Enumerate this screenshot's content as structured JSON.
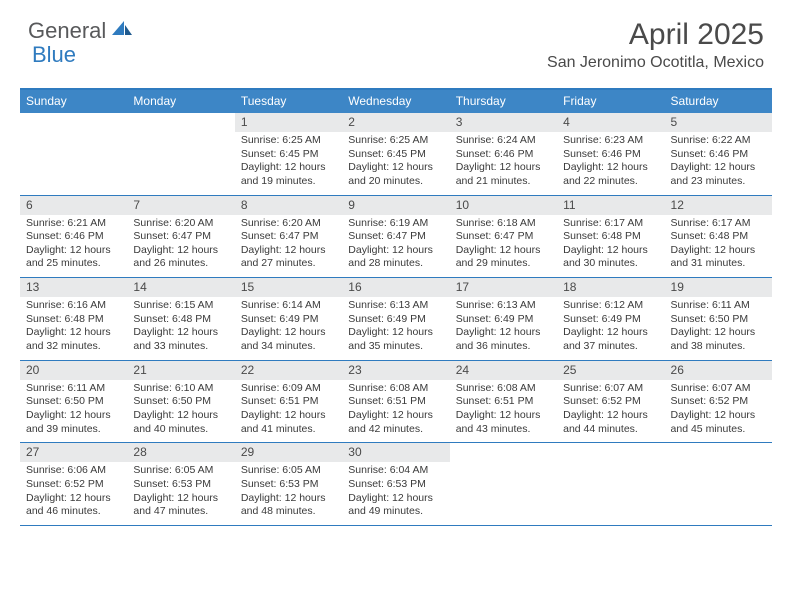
{
  "brand": {
    "name1": "General",
    "name2": "Blue",
    "name1_color": "#58595b",
    "name2_color": "#2f7bbf"
  },
  "header": {
    "title": "April 2025",
    "location": "San Jeronimo Ocotitla, Mexico"
  },
  "colors": {
    "header_bg": "#3d86c6",
    "border": "#2f7bbf",
    "daynum_bg": "#e8e9ea",
    "text": "#4a4a4a",
    "info_text": "#3a3a3a",
    "weekday_text": "#ffffff",
    "background": "#ffffff"
  },
  "weekdays": [
    "Sunday",
    "Monday",
    "Tuesday",
    "Wednesday",
    "Thursday",
    "Friday",
    "Saturday"
  ],
  "weeks": [
    [
      null,
      null,
      {
        "n": "1",
        "sunrise": "6:25 AM",
        "sunset": "6:45 PM",
        "daylight": "12 hours and 19 minutes."
      },
      {
        "n": "2",
        "sunrise": "6:25 AM",
        "sunset": "6:45 PM",
        "daylight": "12 hours and 20 minutes."
      },
      {
        "n": "3",
        "sunrise": "6:24 AM",
        "sunset": "6:46 PM",
        "daylight": "12 hours and 21 minutes."
      },
      {
        "n": "4",
        "sunrise": "6:23 AM",
        "sunset": "6:46 PM",
        "daylight": "12 hours and 22 minutes."
      },
      {
        "n": "5",
        "sunrise": "6:22 AM",
        "sunset": "6:46 PM",
        "daylight": "12 hours and 23 minutes."
      }
    ],
    [
      {
        "n": "6",
        "sunrise": "6:21 AM",
        "sunset": "6:46 PM",
        "daylight": "12 hours and 25 minutes."
      },
      {
        "n": "7",
        "sunrise": "6:20 AM",
        "sunset": "6:47 PM",
        "daylight": "12 hours and 26 minutes."
      },
      {
        "n": "8",
        "sunrise": "6:20 AM",
        "sunset": "6:47 PM",
        "daylight": "12 hours and 27 minutes."
      },
      {
        "n": "9",
        "sunrise": "6:19 AM",
        "sunset": "6:47 PM",
        "daylight": "12 hours and 28 minutes."
      },
      {
        "n": "10",
        "sunrise": "6:18 AM",
        "sunset": "6:47 PM",
        "daylight": "12 hours and 29 minutes."
      },
      {
        "n": "11",
        "sunrise": "6:17 AM",
        "sunset": "6:48 PM",
        "daylight": "12 hours and 30 minutes."
      },
      {
        "n": "12",
        "sunrise": "6:17 AM",
        "sunset": "6:48 PM",
        "daylight": "12 hours and 31 minutes."
      }
    ],
    [
      {
        "n": "13",
        "sunrise": "6:16 AM",
        "sunset": "6:48 PM",
        "daylight": "12 hours and 32 minutes."
      },
      {
        "n": "14",
        "sunrise": "6:15 AM",
        "sunset": "6:48 PM",
        "daylight": "12 hours and 33 minutes."
      },
      {
        "n": "15",
        "sunrise": "6:14 AM",
        "sunset": "6:49 PM",
        "daylight": "12 hours and 34 minutes."
      },
      {
        "n": "16",
        "sunrise": "6:13 AM",
        "sunset": "6:49 PM",
        "daylight": "12 hours and 35 minutes."
      },
      {
        "n": "17",
        "sunrise": "6:13 AM",
        "sunset": "6:49 PM",
        "daylight": "12 hours and 36 minutes."
      },
      {
        "n": "18",
        "sunrise": "6:12 AM",
        "sunset": "6:49 PM",
        "daylight": "12 hours and 37 minutes."
      },
      {
        "n": "19",
        "sunrise": "6:11 AM",
        "sunset": "6:50 PM",
        "daylight": "12 hours and 38 minutes."
      }
    ],
    [
      {
        "n": "20",
        "sunrise": "6:11 AM",
        "sunset": "6:50 PM",
        "daylight": "12 hours and 39 minutes."
      },
      {
        "n": "21",
        "sunrise": "6:10 AM",
        "sunset": "6:50 PM",
        "daylight": "12 hours and 40 minutes."
      },
      {
        "n": "22",
        "sunrise": "6:09 AM",
        "sunset": "6:51 PM",
        "daylight": "12 hours and 41 minutes."
      },
      {
        "n": "23",
        "sunrise": "6:08 AM",
        "sunset": "6:51 PM",
        "daylight": "12 hours and 42 minutes."
      },
      {
        "n": "24",
        "sunrise": "6:08 AM",
        "sunset": "6:51 PM",
        "daylight": "12 hours and 43 minutes."
      },
      {
        "n": "25",
        "sunrise": "6:07 AM",
        "sunset": "6:52 PM",
        "daylight": "12 hours and 44 minutes."
      },
      {
        "n": "26",
        "sunrise": "6:07 AM",
        "sunset": "6:52 PM",
        "daylight": "12 hours and 45 minutes."
      }
    ],
    [
      {
        "n": "27",
        "sunrise": "6:06 AM",
        "sunset": "6:52 PM",
        "daylight": "12 hours and 46 minutes."
      },
      {
        "n": "28",
        "sunrise": "6:05 AM",
        "sunset": "6:53 PM",
        "daylight": "12 hours and 47 minutes."
      },
      {
        "n": "29",
        "sunrise": "6:05 AM",
        "sunset": "6:53 PM",
        "daylight": "12 hours and 48 minutes."
      },
      {
        "n": "30",
        "sunrise": "6:04 AM",
        "sunset": "6:53 PM",
        "daylight": "12 hours and 49 minutes."
      },
      null,
      null,
      null
    ]
  ],
  "labels": {
    "sunrise": "Sunrise:",
    "sunset": "Sunset:",
    "daylight": "Daylight:"
  }
}
